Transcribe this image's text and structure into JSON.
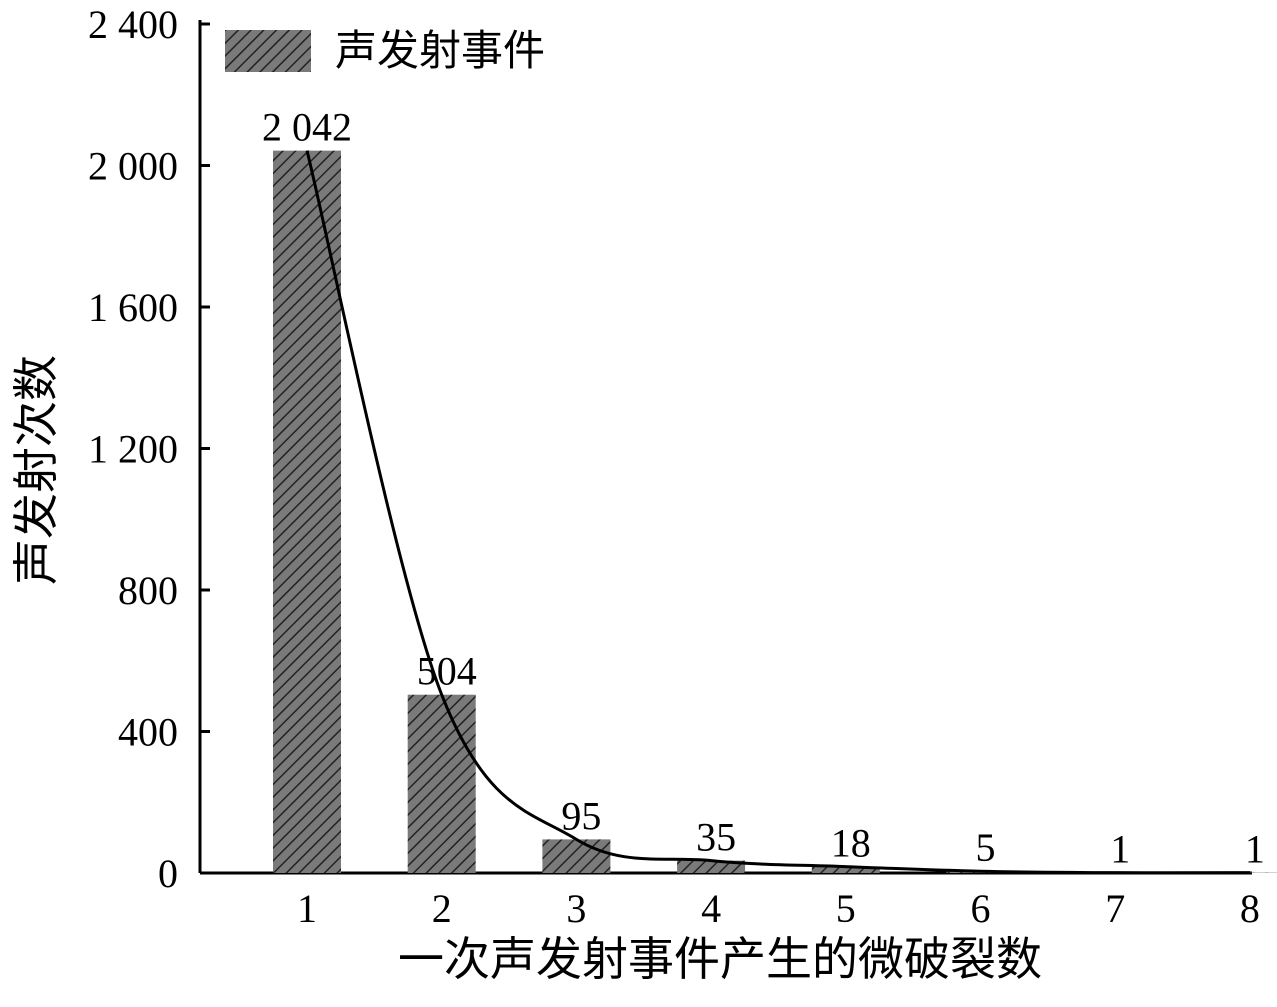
{
  "chart_data": {
    "type": "bar",
    "x_label": "一次声发射事件产生的微破裂数",
    "y_label": "声发射次数",
    "categories": [
      "1",
      "2",
      "3",
      "4",
      "5",
      "6",
      "7",
      "8"
    ],
    "series": [
      {
        "name": "声发射事件",
        "color": "#777777",
        "values": [
          2042,
          504,
          95,
          35,
          18,
          5,
          1,
          1
        ],
        "value_labels": [
          "2 042",
          "504",
          "95",
          "35",
          "18",
          "5",
          "1",
          "1"
        ]
      }
    ],
    "ylim": [
      0,
      2400
    ],
    "yticks": [
      0,
      400,
      800,
      {
        "value": 1200,
        "label": "1 200"
      },
      {
        "value": 1600,
        "label": "1 600"
      },
      {
        "value": 2000,
        "label": "2 000"
      },
      {
        "value": 2400,
        "label": "2 400"
      }
    ],
    "legend": "upper left"
  }
}
